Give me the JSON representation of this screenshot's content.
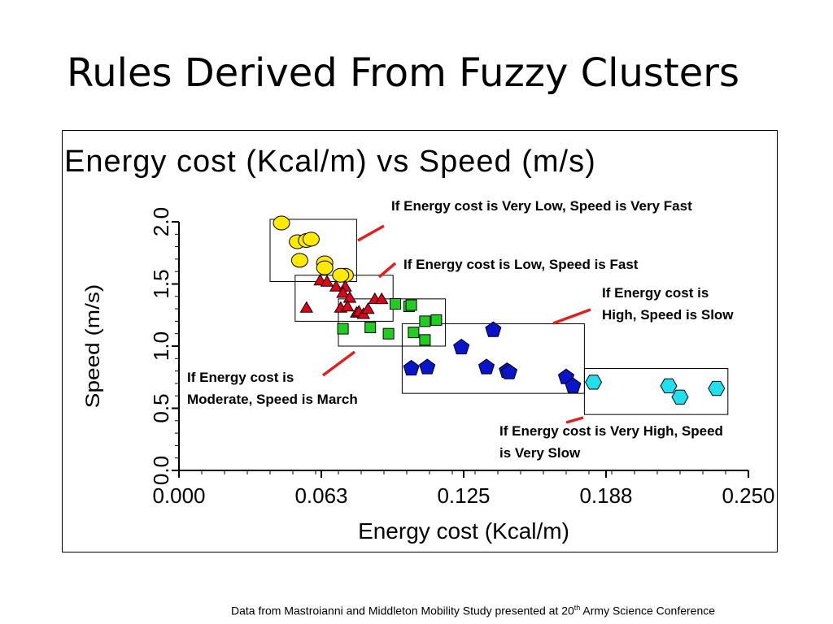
{
  "slide": {
    "title": "Rules Derived From Fuzzy Clusters",
    "footnote_pre": "Data from Mastroianni and Middleton Mobility Study presented at 20",
    "footnote_sup": "th",
    "footnote_post": " Army Science Conference"
  },
  "rules": [
    {
      "text": "If Energy cost is Very Low, Speed is Very Fast"
    },
    {
      "text": "If Energy cost is Low, Speed is Fast"
    },
    {
      "text": "If Energy cost is High, Speed is Slow"
    },
    {
      "text": "If Energy cost is Moderate, Speed is March"
    },
    {
      "text": "If Energy cost is Very High, Speed is Very Slow"
    }
  ],
  "colors": {
    "red_line": "#e02020",
    "very_low": "#ffea00",
    "low": "#e0001a",
    "moderate": "#22cc22",
    "high": "#0a14c8",
    "very_high": "#20e0ee"
  },
  "chart_data": {
    "type": "scatter",
    "title": "Energy cost (Kcal/m) vs Speed (m/s)",
    "xlabel": "Energy cost (Kcal/m)",
    "ylabel": "Speed (m/s)",
    "xlim": [
      0.0,
      0.25
    ],
    "ylim": [
      0.0,
      2.0
    ],
    "xticks": [
      "0.000",
      "0.063",
      "0.125",
      "0.188",
      "0.250"
    ],
    "yticks": [
      "0.0",
      "0.5",
      "1.0",
      "1.5",
      "2.0"
    ],
    "clusters": [
      {
        "shape": "circle",
        "color": "#ffea00",
        "box": {
          "x": [
            0.04,
            0.078
          ],
          "y": [
            1.52,
            2.02
          ]
        },
        "points": [
          [
            0.045,
            1.99
          ],
          [
            0.052,
            1.84
          ],
          [
            0.056,
            1.85
          ],
          [
            0.058,
            1.86
          ],
          [
            0.053,
            1.69
          ],
          [
            0.064,
            1.67
          ],
          [
            0.064,
            1.63
          ],
          [
            0.073,
            1.57
          ],
          [
            0.071,
            1.57
          ]
        ]
      },
      {
        "shape": "triangle",
        "color": "#e0001a",
        "box": {
          "x": [
            0.051,
            0.094
          ],
          "y": [
            1.2,
            1.57
          ]
        },
        "points": [
          [
            0.056,
            1.31
          ],
          [
            0.062,
            1.53
          ],
          [
            0.065,
            1.52
          ],
          [
            0.069,
            1.48
          ],
          [
            0.073,
            1.48
          ],
          [
            0.072,
            1.43
          ],
          [
            0.075,
            1.39
          ],
          [
            0.071,
            1.31
          ],
          [
            0.074,
            1.32
          ],
          [
            0.078,
            1.27
          ],
          [
            0.079,
            1.28
          ],
          [
            0.081,
            1.26
          ],
          [
            0.083,
            1.3
          ],
          [
            0.086,
            1.38
          ],
          [
            0.089,
            1.38
          ]
        ]
      },
      {
        "shape": "square",
        "color": "#22cc22",
        "box": {
          "x": [
            0.07,
            0.117
          ],
          "y": [
            1.0,
            1.38
          ]
        },
        "points": [
          [
            0.072,
            1.14
          ],
          [
            0.084,
            1.15
          ],
          [
            0.092,
            1.1
          ],
          [
            0.095,
            1.34
          ],
          [
            0.101,
            1.32
          ],
          [
            0.102,
            1.33
          ],
          [
            0.103,
            1.11
          ],
          [
            0.108,
            1.05
          ],
          [
            0.108,
            1.2
          ],
          [
            0.113,
            1.21
          ]
        ]
      },
      {
        "shape": "pentagon",
        "color": "#0a14c8",
        "box": {
          "x": [
            0.098,
            0.178
          ],
          "y": [
            0.62,
            1.18
          ]
        },
        "points": [
          [
            0.102,
            0.82
          ],
          [
            0.109,
            0.83
          ],
          [
            0.124,
            0.99
          ],
          [
            0.135,
            0.83
          ],
          [
            0.138,
            1.13
          ],
          [
            0.144,
            0.8
          ],
          [
            0.145,
            0.79
          ],
          [
            0.17,
            0.75
          ],
          [
            0.173,
            0.68
          ]
        ]
      },
      {
        "shape": "hexagon",
        "color": "#20e0ee",
        "box": {
          "x": [
            0.178,
            0.241
          ],
          "y": [
            0.45,
            0.82
          ]
        },
        "points": [
          [
            0.182,
            0.71
          ],
          [
            0.215,
            0.68
          ],
          [
            0.22,
            0.59
          ],
          [
            0.236,
            0.66
          ]
        ]
      }
    ]
  }
}
